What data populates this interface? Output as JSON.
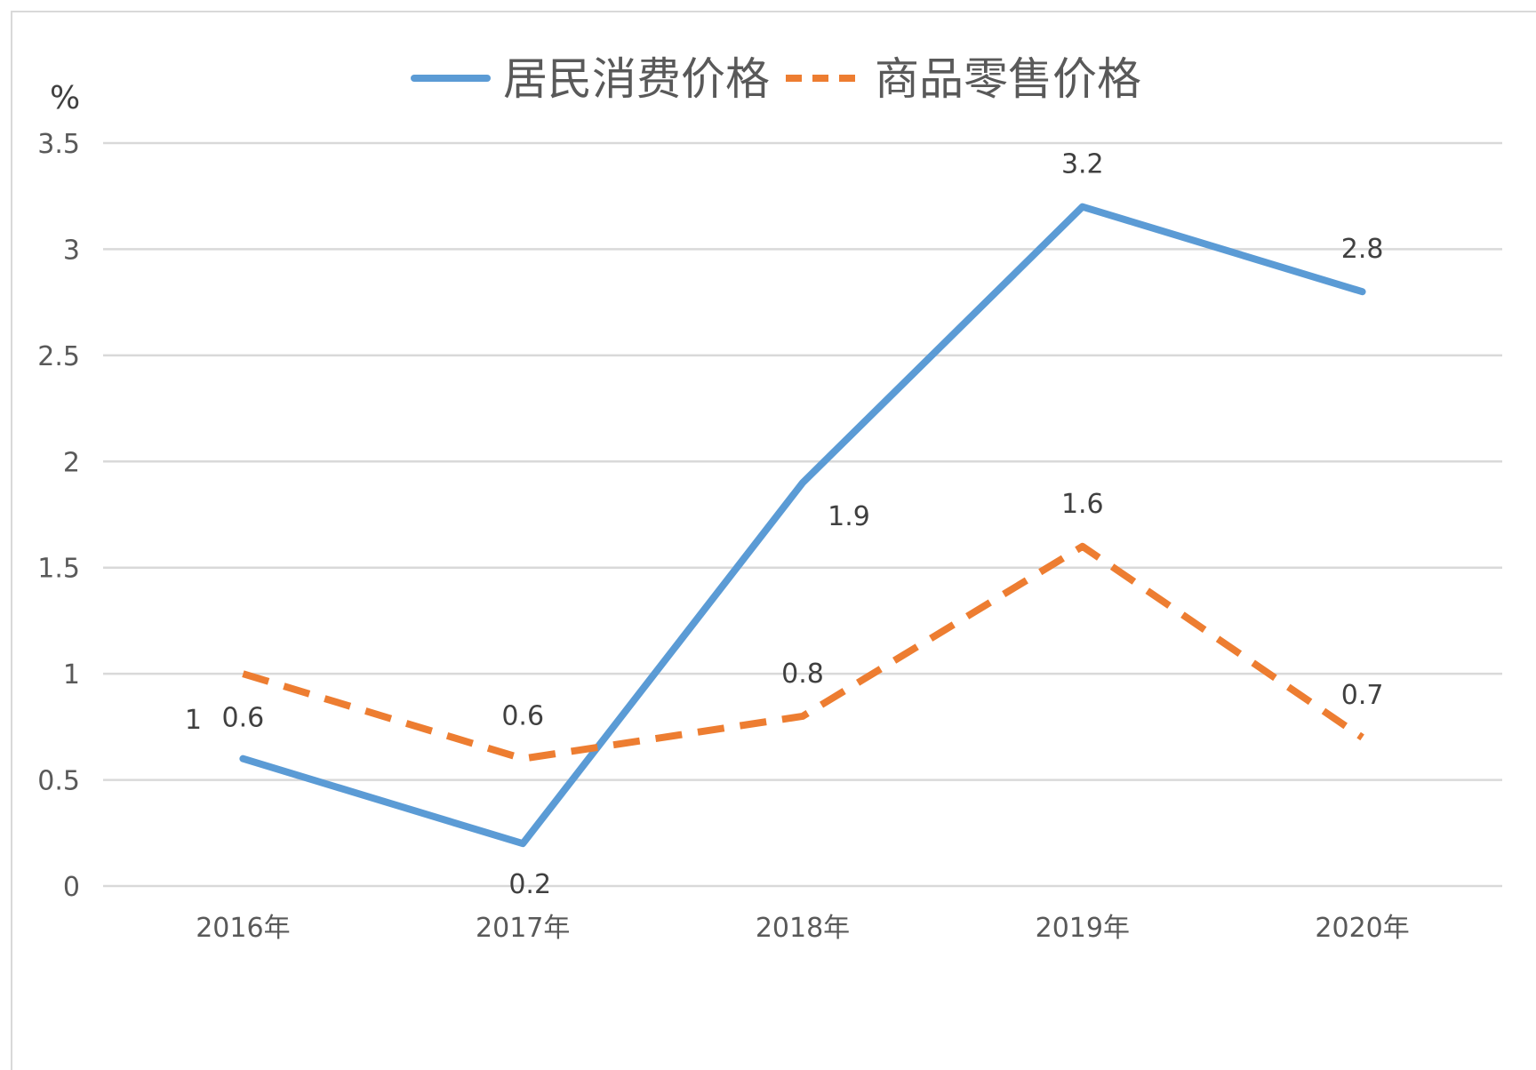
{
  "chart_data": {
    "type": "line",
    "unit_label": "%",
    "categories": [
      "2016年",
      "2017年",
      "2018年",
      "2019年",
      "2020年"
    ],
    "y_ticks": [
      "0",
      "0.5",
      "1",
      "1.5",
      "2",
      "2.5",
      "3",
      "3.5"
    ],
    "ylim": [
      0,
      3.5
    ],
    "grid": true,
    "legend_position": "top",
    "series": [
      {
        "name": "居民消费价格",
        "values": [
          0.6,
          0.2,
          1.9,
          3.2,
          2.8
        ],
        "data_labels": [
          "0.6",
          "0.2",
          "1.9",
          "3.2",
          "2.8"
        ],
        "color": "#5b9bd5",
        "style": "solid"
      },
      {
        "name": "商品零售价格",
        "values": [
          1,
          0.6,
          0.8,
          1.6,
          0.7
        ],
        "data_labels": [
          "1",
          "0.6",
          "0.8",
          "1.6",
          "0.7"
        ],
        "color": "#ed7d31",
        "style": "dashed"
      }
    ]
  }
}
